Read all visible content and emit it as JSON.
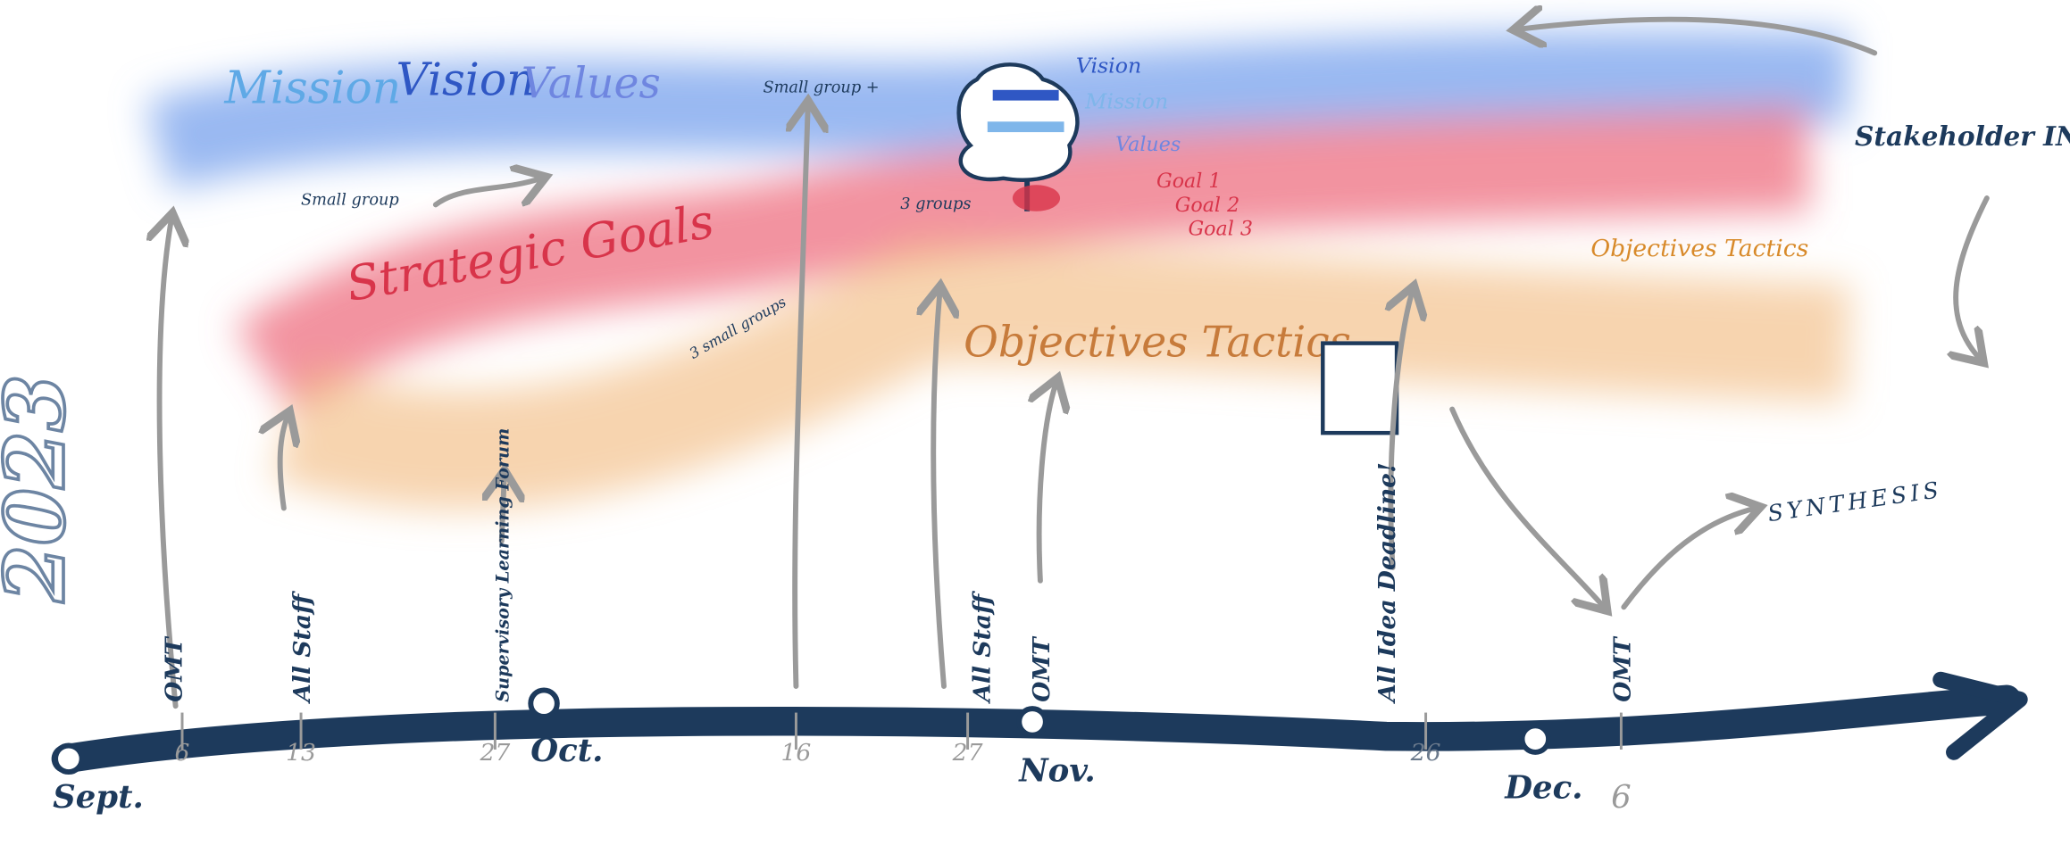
{
  "year": "2023",
  "streams": {
    "mission_vision_values": {
      "title": [
        "Mission",
        "Vision",
        "Values"
      ],
      "small_group": "Small group",
      "small_group_plus": "Small group +"
    },
    "strategic_goals": {
      "title": "Strategic Goals",
      "groups": "3 groups",
      "small_groups": "3 small groups"
    },
    "outputs": {
      "vision": "Vision",
      "mission": "Mission",
      "values": "Values",
      "goals": [
        "Goal 1",
        "Goal 2",
        "Goal 3"
      ]
    },
    "objectives_tactics": {
      "title": "Objectives Tactics",
      "small_title": "Objectives Tactics"
    }
  },
  "stakeholder_input": "Stakeholder INPUT",
  "synthesis": "SYNTHESIS",
  "timeline": {
    "months": [
      "Sept.",
      "Oct.",
      "Nov.",
      "Dec."
    ],
    "dates": [
      6,
      13,
      27,
      16,
      27,
      26,
      6
    ],
    "events": [
      "OMT",
      "All Staff",
      "Supervisory Learning Forum",
      "All Staff",
      "OMT",
      "All Idea Deadline!",
      "OMT"
    ]
  }
}
